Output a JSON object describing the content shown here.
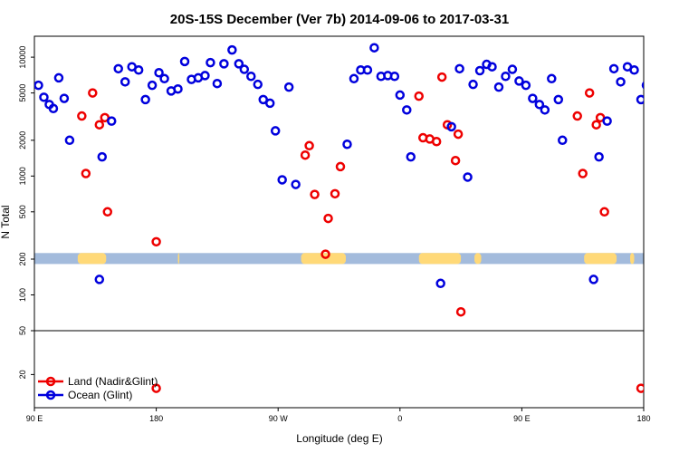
{
  "chart_data": {
    "type": "scatter",
    "title": "20S-15S December (Ver 7b)   2014-09-06 to 2017-03-31",
    "xlabel": "Longitude (deg E)",
    "ylabel": "N Total",
    "x_ticks": [
      {
        "value": 90,
        "label": "90 E"
      },
      {
        "value": 180,
        "label": "180"
      },
      {
        "value": 270,
        "label": "90 W"
      },
      {
        "value": 360,
        "label": "0"
      },
      {
        "value": 450,
        "label": "90 E"
      },
      {
        "value": 540,
        "label": "180"
      }
    ],
    "y_ticks": [
      20,
      50,
      100,
      200,
      500,
      1000,
      2000,
      5000,
      10000
    ],
    "xlim": [
      90,
      540
    ],
    "ylim_upper": [
      50,
      15000
    ],
    "ylim_lower": [
      10,
      50
    ],
    "y_scale": "log",
    "legend_position": "bottom-left",
    "colors": {
      "land": "#ee0000",
      "ocean": "#0000dd",
      "land_mask": "#ffd978",
      "ocean_mask": "#a3bbdc"
    },
    "land_mask": [
      [
        122,
        143
      ],
      [
        196,
        197
      ],
      [
        287,
        320
      ],
      [
        374,
        405
      ],
      [
        415,
        420
      ],
      [
        496,
        520
      ],
      [
        530,
        533
      ]
    ],
    "series": [
      {
        "name": "Land (Nadir&Glint)",
        "color": "#ee0000",
        "points": [
          [
            125,
            3200
          ],
          [
            128,
            1050
          ],
          [
            133,
            5000
          ],
          [
            138,
            2700
          ],
          [
            142,
            3100
          ],
          [
            144,
            500
          ],
          [
            180,
            280
          ],
          [
            180,
            15
          ],
          [
            290,
            1500
          ],
          [
            293,
            1800
          ],
          [
            297,
            700
          ],
          [
            305,
            220
          ],
          [
            307,
            440
          ],
          [
            312,
            710
          ],
          [
            316,
            1200
          ],
          [
            374,
            4700
          ],
          [
            377,
            2100
          ],
          [
            382,
            2050
          ],
          [
            387,
            1950
          ],
          [
            391,
            6800
          ],
          [
            395,
            2700
          ],
          [
            401,
            1350
          ],
          [
            403,
            2250
          ],
          [
            405,
            72
          ],
          [
            491,
            3200
          ],
          [
            495,
            1050
          ],
          [
            500,
            5000
          ],
          [
            505,
            2700
          ],
          [
            508,
            3100
          ],
          [
            511,
            500
          ],
          [
            538,
            15
          ]
        ]
      },
      {
        "name": "Ocean (Glint)",
        "color": "#0000dd",
        "points": [
          [
            93,
            5800
          ],
          [
            97,
            4600
          ],
          [
            101,
            4000
          ],
          [
            104,
            3700
          ],
          [
            108,
            6700
          ],
          [
            112,
            4500
          ],
          [
            116,
            2000
          ],
          [
            138,
            135
          ],
          [
            140,
            1450
          ],
          [
            147,
            2900
          ],
          [
            152,
            8000
          ],
          [
            157,
            6200
          ],
          [
            162,
            8300
          ],
          [
            167,
            7800
          ],
          [
            172,
            4400
          ],
          [
            177,
            5800
          ],
          [
            182,
            7400
          ],
          [
            186,
            6600
          ],
          [
            191,
            5200
          ],
          [
            196,
            5400
          ],
          [
            201,
            9200
          ],
          [
            206,
            6500
          ],
          [
            211,
            6700
          ],
          [
            216,
            7000
          ],
          [
            220,
            9000
          ],
          [
            225,
            6000
          ],
          [
            230,
            8800
          ],
          [
            236,
            11500
          ],
          [
            241,
            8800
          ],
          [
            245,
            7900
          ],
          [
            250,
            6900
          ],
          [
            255,
            5900
          ],
          [
            259,
            4400
          ],
          [
            264,
            4100
          ],
          [
            268,
            2400
          ],
          [
            273,
            930
          ],
          [
            278,
            5600
          ],
          [
            283,
            850
          ],
          [
            321,
            1850
          ],
          [
            326,
            6600
          ],
          [
            331,
            7800
          ],
          [
            336,
            7800
          ],
          [
            341,
            12000
          ],
          [
            346,
            6900
          ],
          [
            351,
            7000
          ],
          [
            356,
            6900
          ],
          [
            360,
            4800
          ],
          [
            365,
            3600
          ],
          [
            368,
            1450
          ],
          [
            390,
            125
          ],
          [
            398,
            2600
          ],
          [
            404,
            8000
          ],
          [
            410,
            980
          ],
          [
            414,
            5900
          ],
          [
            419,
            7700
          ],
          [
            424,
            8700
          ],
          [
            428,
            8300
          ],
          [
            433,
            5600
          ],
          [
            438,
            6900
          ],
          [
            443,
            7900
          ],
          [
            448,
            6300
          ],
          [
            453,
            5800
          ],
          [
            458,
            4500
          ],
          [
            463,
            4000
          ],
          [
            467,
            3600
          ],
          [
            472,
            6600
          ],
          [
            477,
            4400
          ],
          [
            480,
            2000
          ],
          [
            503,
            135
          ],
          [
            507,
            1450
          ],
          [
            513,
            2900
          ],
          [
            518,
            8000
          ],
          [
            523,
            6200
          ],
          [
            528,
            8300
          ],
          [
            533,
            7800
          ],
          [
            538,
            4400
          ],
          [
            542,
            5800
          ]
        ]
      }
    ]
  }
}
